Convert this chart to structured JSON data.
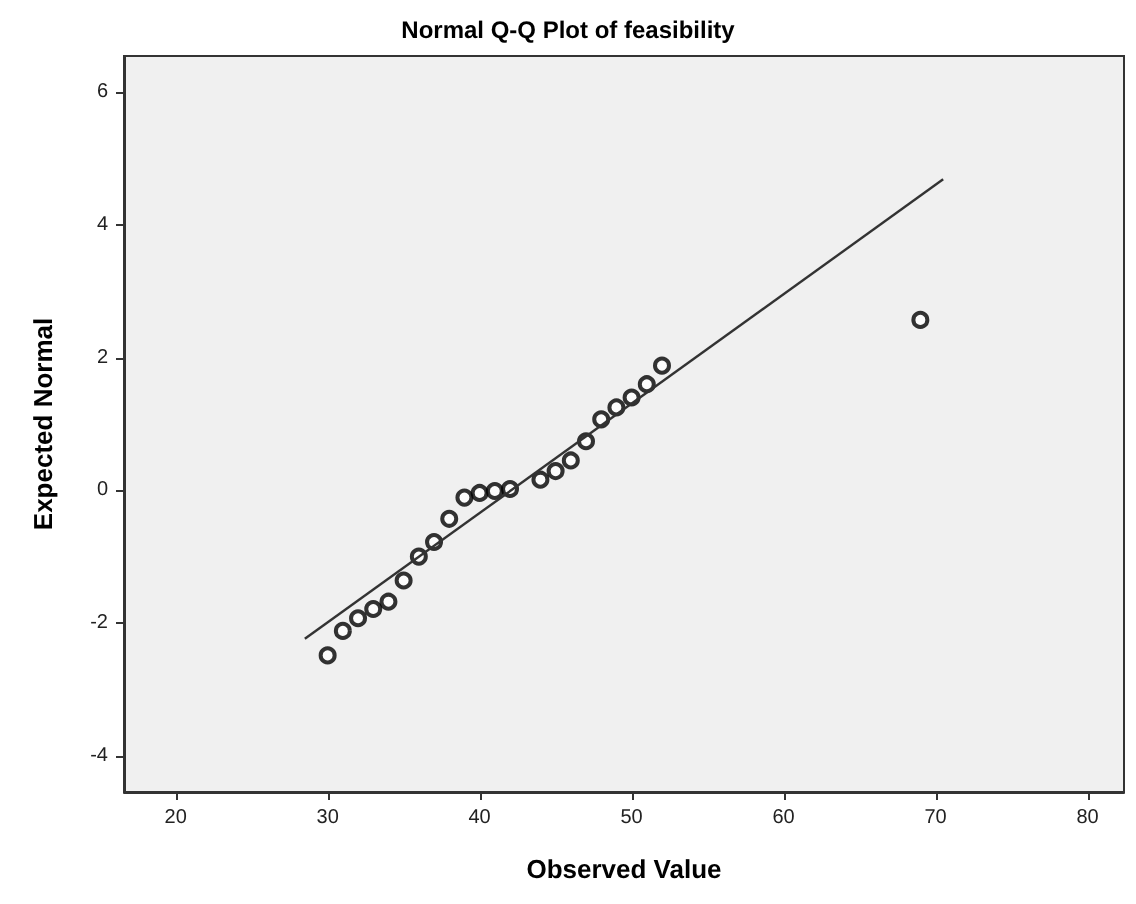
{
  "chart_data": {
    "type": "scatter",
    "title": "Normal Q-Q Plot of feasibility",
    "xlabel": "Observed Value",
    "ylabel": "Expected Normal",
    "x": [
      30,
      31,
      32,
      33,
      34,
      35,
      36,
      37,
      38,
      39,
      40,
      41,
      42,
      44,
      45,
      46,
      47,
      48,
      49,
      50,
      51,
      52,
      69
    ],
    "series": [
      {
        "color": "#000000",
        "marker": "circle",
        "values": [
          -2.49,
          -2.12,
          -1.93,
          -1.79,
          -1.68,
          -1.36,
          -1.0,
          -0.78,
          -0.43,
          -0.11,
          -0.04,
          -0.01,
          0.02,
          0.16,
          0.29,
          0.45,
          0.74,
          1.07,
          1.25,
          1.4,
          1.6,
          1.88,
          2.57
        ]
      },
      {
        "type": "line",
        "marker": "none",
        "color": "#333333",
        "x": [
          28.5,
          70.5
        ],
        "values": [
          -2.24,
          4.69
        ]
      }
    ],
    "xlim": [
      16.6,
      82.4
    ],
    "ylim": [
      -4.55,
      6.55
    ],
    "xticks": [
      20,
      30,
      40,
      50,
      60,
      70,
      80
    ],
    "yticks": [
      -4,
      -2,
      0,
      2,
      4,
      6
    ],
    "grid": false
  }
}
